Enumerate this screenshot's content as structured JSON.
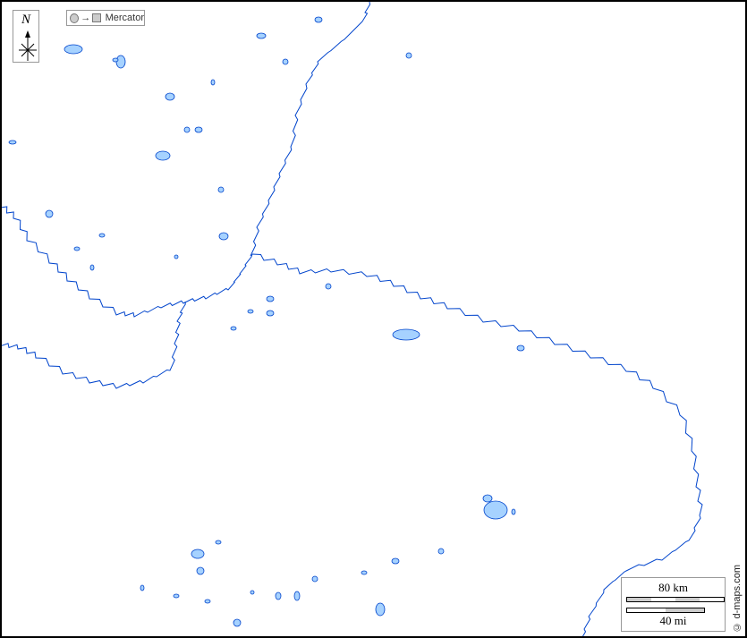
{
  "map": {
    "projection_label": "Mercator",
    "north_label": "N",
    "scale_km_label": "80 km",
    "scale_mi_label": "40 mi",
    "credit": "© d-maps.com",
    "colors": {
      "water_fill": "#a6d2ff",
      "water_stroke": "#0044cc",
      "frame": "#000000"
    }
  }
}
